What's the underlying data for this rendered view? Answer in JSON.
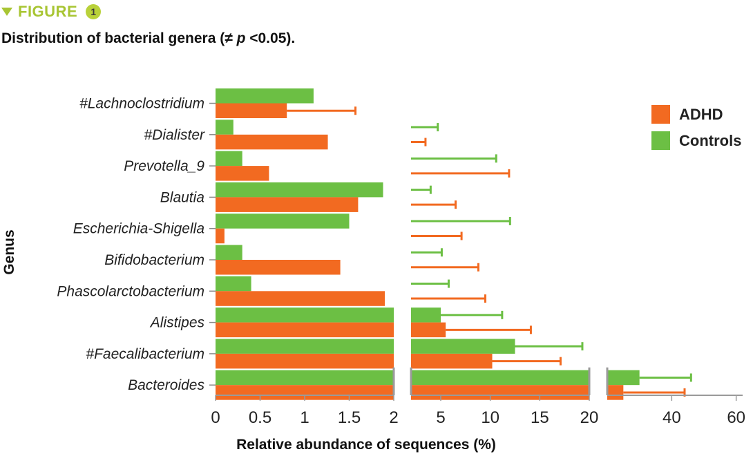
{
  "header": {
    "figure_word": "FIGURE",
    "figure_number": "1",
    "subtitle_pre": "Distribution of bacterial genera (≠ ",
    "subtitle_p": "p",
    "subtitle_post": " <0.05)."
  },
  "colors": {
    "adhd": "#f26a21",
    "controls": "#6cbf44",
    "accent": "#a8c533"
  },
  "chart_data": {
    "type": "bar",
    "orientation": "horizontal",
    "broken_axis": true,
    "categories": [
      "#Lachnoclostridium",
      "#Dialister",
      "Prevotella_9",
      "Blautia",
      "Escherichia-Shigella",
      "Bifidobacterium",
      "Phascolarctobacterium",
      "Alistipes",
      "#Faecalibacterium",
      "Bacteroides"
    ],
    "series": [
      {
        "name": "Controls",
        "values": [
          1.1,
          0.2,
          0.3,
          1.88,
          1.5,
          0.3,
          0.4,
          5.0,
          12.5,
          30
        ],
        "errors": [
          0,
          4.5,
          10.3,
          2.1,
          10.5,
          4.8,
          5.4,
          6.2,
          6.8,
          16
        ]
      },
      {
        "name": "ADHD",
        "values": [
          0.8,
          1.26,
          0.6,
          1.6,
          0.1,
          1.4,
          1.9,
          5.5,
          10.2,
          25
        ],
        "errors": [
          0.77,
          2.2,
          11.3,
          4.9,
          7.0,
          7.4,
          7.6,
          8.6,
          6.9,
          19
        ]
      }
    ],
    "segments": [
      {
        "range": [
          0,
          2
        ],
        "ticks": [
          0,
          0.5,
          1,
          1.5,
          2
        ],
        "tick_labels": [
          "0",
          "0.5",
          "1",
          "1.5",
          "2"
        ]
      },
      {
        "range": [
          2,
          20
        ],
        "ticks": [
          5,
          10,
          15,
          20
        ],
        "tick_labels": [
          "5",
          "10",
          "15",
          "20"
        ]
      },
      {
        "range": [
          20,
          62
        ],
        "ticks": [
          40,
          60
        ],
        "tick_labels": [
          "40",
          "60"
        ]
      }
    ],
    "xlabel": "Relative abundance of sequences (%)",
    "ylabel": "Genus",
    "legend": [
      "ADHD",
      "Controls"
    ],
    "legend_position": "top-right",
    "grid": false
  }
}
